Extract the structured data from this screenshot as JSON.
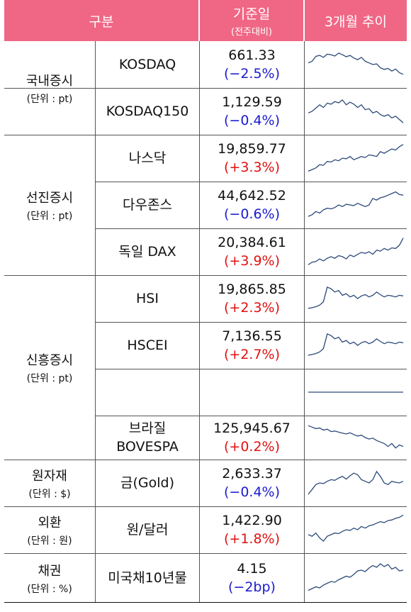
{
  "header": {
    "category": "구분",
    "base_date": "기준일",
    "base_date_sub": "(전주대비)",
    "trend": "3개월 추이"
  },
  "colors": {
    "header_bg": "#f06785",
    "up": "#e01010",
    "down": "#1a1ad0",
    "line": "#2c4a7a"
  },
  "groups": [
    {
      "name": "국내증시",
      "unit": "(단위 : pt)"
    },
    {
      "name": "선진증시",
      "unit": "(단위 : pt)"
    },
    {
      "name": "신흥증시",
      "unit": "(단위 : pt)"
    },
    {
      "name": "원자재",
      "unit": "(단위 : $)"
    },
    {
      "name": "외환",
      "unit": "(단위 : 원)"
    },
    {
      "name": "채권",
      "unit": "(단위 : %)"
    }
  ],
  "rows": [
    {
      "name": "KOSDAQ",
      "value": "661.33",
      "change": "(−2.5%)",
      "dir": "down",
      "trend": [
        0.55,
        0.6,
        0.75,
        0.78,
        0.72,
        0.82,
        0.8,
        0.76,
        0.85,
        0.8,
        0.74,
        0.78,
        0.7,
        0.65,
        0.72,
        0.6,
        0.55,
        0.5,
        0.52,
        0.4,
        0.35,
        0.38,
        0.3,
        0.36,
        0.25,
        0.2
      ]
    },
    {
      "name": "KOSDAQ150",
      "value": "1,129.59",
      "change": "(−0.4%)",
      "dir": "down",
      "trend": [
        0.45,
        0.5,
        0.6,
        0.7,
        0.62,
        0.75,
        0.72,
        0.8,
        0.76,
        0.85,
        0.7,
        0.78,
        0.72,
        0.62,
        0.7,
        0.55,
        0.58,
        0.45,
        0.5,
        0.4,
        0.35,
        0.4,
        0.3,
        0.35,
        0.25,
        0.15
      ]
    },
    {
      "name": "나스닥",
      "value": "19,859.77",
      "change": "(+3.3%)",
      "dir": "up",
      "trend": [
        0.1,
        0.15,
        0.2,
        0.3,
        0.28,
        0.4,
        0.38,
        0.45,
        0.42,
        0.5,
        0.48,
        0.55,
        0.45,
        0.5,
        0.55,
        0.52,
        0.6,
        0.58,
        0.55,
        0.7,
        0.65,
        0.72,
        0.78,
        0.75,
        0.85,
        0.92
      ]
    },
    {
      "name": "다우존스",
      "value": "44,642.52",
      "change": "(−0.6%)",
      "dir": "down",
      "trend": [
        0.15,
        0.2,
        0.3,
        0.25,
        0.35,
        0.4,
        0.38,
        0.42,
        0.5,
        0.45,
        0.52,
        0.5,
        0.48,
        0.55,
        0.5,
        0.45,
        0.5,
        0.7,
        0.65,
        0.72,
        0.75,
        0.8,
        0.85,
        0.9,
        0.82,
        0.8
      ]
    },
    {
      "name": "독일 DAX",
      "value": "20,384.61",
      "change": "(+3.9%)",
      "dir": "up",
      "trend": [
        0.1,
        0.18,
        0.2,
        0.28,
        0.22,
        0.3,
        0.35,
        0.3,
        0.38,
        0.35,
        0.28,
        0.4,
        0.35,
        0.42,
        0.48,
        0.45,
        0.5,
        0.42,
        0.55,
        0.52,
        0.6,
        0.55,
        0.62,
        0.6,
        0.7,
        0.92
      ]
    },
    {
      "name": "HSI",
      "value": "19,865.85",
      "change": "(+2.3%)",
      "dir": "up",
      "trend": [
        0.2,
        0.22,
        0.25,
        0.3,
        0.4,
        0.85,
        0.8,
        0.7,
        0.75,
        0.6,
        0.65,
        0.55,
        0.6,
        0.5,
        0.58,
        0.62,
        0.55,
        0.6,
        0.7,
        0.62,
        0.55,
        0.6,
        0.58,
        0.55,
        0.6,
        0.58
      ]
    },
    {
      "name": "HSCEI",
      "value": "7,136.55",
      "change": "(+2.7%)",
      "dir": "up",
      "trend": [
        0.2,
        0.22,
        0.25,
        0.3,
        0.4,
        0.85,
        0.8,
        0.7,
        0.75,
        0.6,
        0.65,
        0.55,
        0.6,
        0.5,
        0.58,
        0.62,
        0.55,
        0.6,
        0.7,
        0.62,
        0.55,
        0.6,
        0.58,
        0.55,
        0.6,
        0.58
      ]
    },
    {
      "name": "",
      "value": "",
      "change": "",
      "dir": "",
      "trend": [
        0.5,
        0.5
      ]
    },
    {
      "name": "브라질\nBOVESPA",
      "value": "125,945.67",
      "change": "(+0.2%)",
      "dir": "up",
      "trend": [
        0.9,
        0.85,
        0.8,
        0.82,
        0.75,
        0.78,
        0.7,
        0.72,
        0.68,
        0.65,
        0.62,
        0.66,
        0.6,
        0.55,
        0.58,
        0.5,
        0.45,
        0.48,
        0.4,
        0.35,
        0.3,
        0.2,
        0.3,
        0.15,
        0.25,
        0.2
      ]
    },
    {
      "name": "금(Gold)",
      "value": "2,633.37",
      "change": "(−0.4%)",
      "dir": "down",
      "trend": [
        0.15,
        0.3,
        0.45,
        0.5,
        0.48,
        0.55,
        0.6,
        0.58,
        0.65,
        0.7,
        0.62,
        0.72,
        0.8,
        0.75,
        0.6,
        0.55,
        0.5,
        0.6,
        0.85,
        0.7,
        0.5,
        0.45,
        0.55,
        0.52,
        0.5,
        0.55
      ]
    },
    {
      "name": "원/달러",
      "value": "1,422.90",
      "change": "(+1.8%)",
      "dir": "up",
      "trend": [
        0.35,
        0.3,
        0.4,
        0.25,
        0.15,
        0.3,
        0.35,
        0.4,
        0.38,
        0.45,
        0.5,
        0.48,
        0.55,
        0.5,
        0.6,
        0.55,
        0.62,
        0.65,
        0.7,
        0.75,
        0.72,
        0.78,
        0.8,
        0.85,
        0.88,
        0.95
      ]
    },
    {
      "name": "미국채10년물",
      "value": "4.15",
      "change": "(−2bp)",
      "dir": "down",
      "trend": [
        0.15,
        0.2,
        0.25,
        0.22,
        0.3,
        0.35,
        0.4,
        0.38,
        0.45,
        0.5,
        0.55,
        0.52,
        0.6,
        0.7,
        0.72,
        0.68,
        0.78,
        0.85,
        0.8,
        0.9,
        0.82,
        0.88,
        0.75,
        0.8,
        0.7,
        0.72
      ]
    }
  ]
}
